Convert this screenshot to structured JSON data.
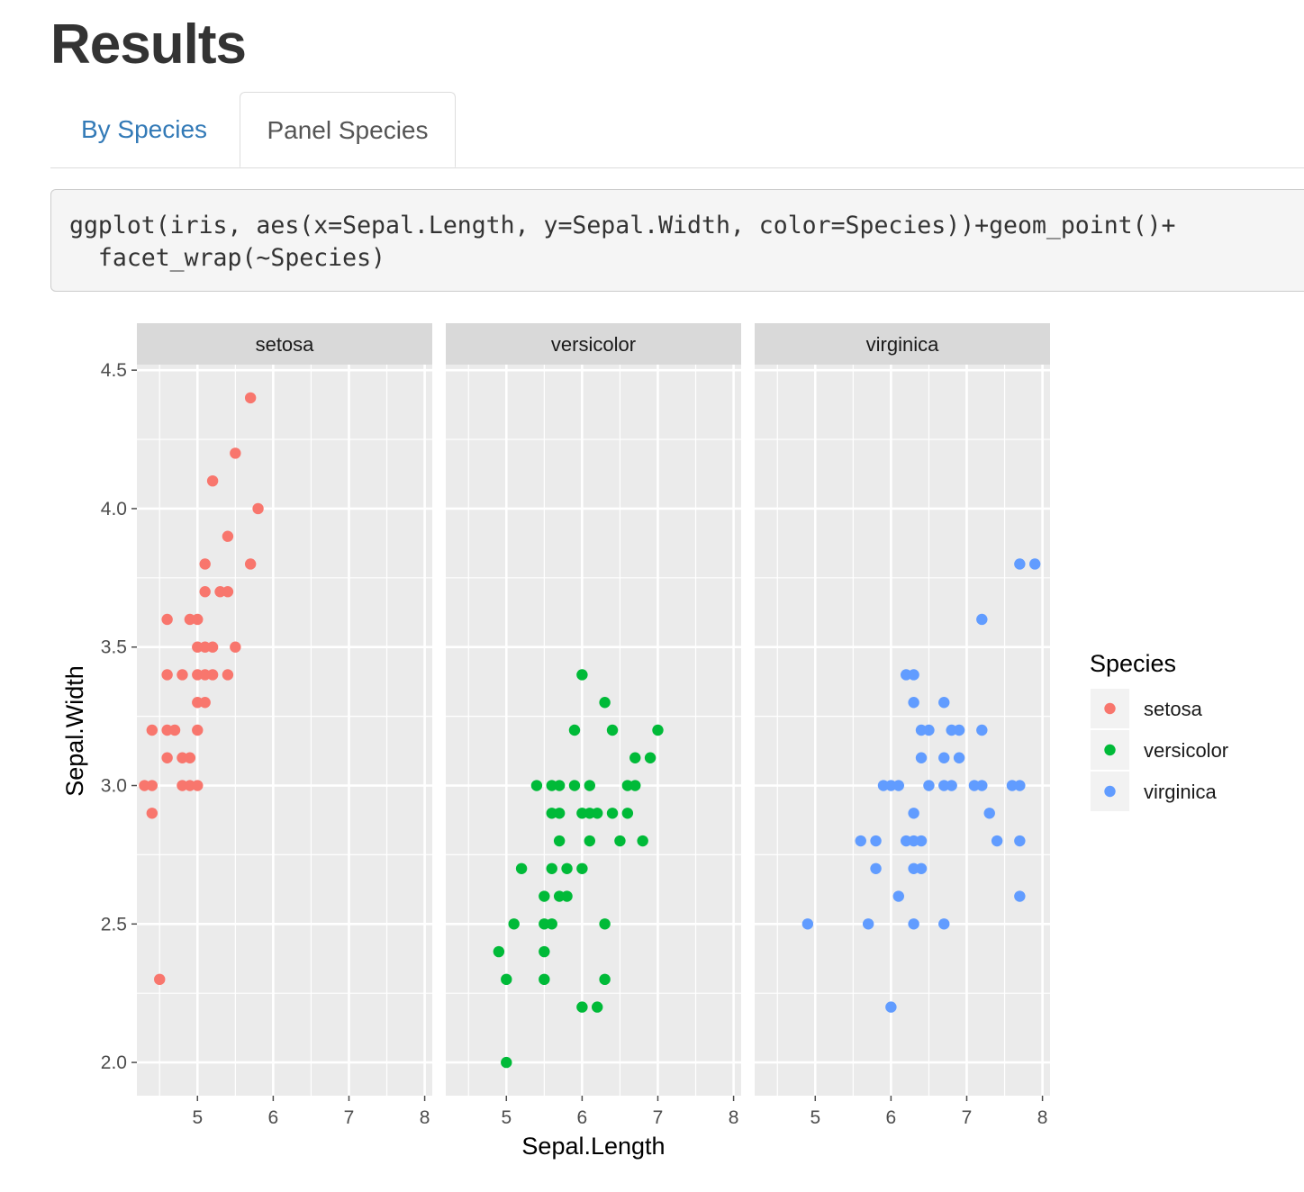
{
  "page": {
    "title": "Results"
  },
  "tabs": [
    {
      "label": "By Species",
      "active": false
    },
    {
      "label": "Panel Species",
      "active": true
    }
  ],
  "code": {
    "line1": "ggplot(iris, aes(x=Sepal.Length, y=Sepal.Width, color=Species))+geom_point()+",
    "line2": "  facet_wrap(~Species)"
  },
  "colors": {
    "setosa": "#F8766D",
    "versicolor": "#00BA38",
    "virginica": "#619CFF",
    "panel_bg": "#EBEBEB",
    "strip_bg": "#D9D9D9",
    "tab_link": "#337ab7"
  },
  "chart_data": {
    "type": "scatter",
    "facet_by": "Species",
    "xlabel": "Sepal.Length",
    "ylabel": "Sepal.Width",
    "xlim": [
      4.2,
      8.1
    ],
    "ylim": [
      1.88,
      4.52
    ],
    "x_ticks": [
      5,
      6,
      7,
      8
    ],
    "y_ticks": [
      "2.0",
      "2.5",
      "3.0",
      "3.5",
      "4.0",
      "4.5"
    ],
    "grid": true,
    "legend": {
      "title": "Species",
      "placement": "right",
      "entries": [
        "setosa",
        "versicolor",
        "virginica"
      ]
    },
    "series": [
      {
        "name": "setosa",
        "points": [
          [
            5.7,
            4.4
          ],
          [
            5.5,
            4.2
          ],
          [
            5.2,
            4.1
          ],
          [
            5.8,
            4.0
          ],
          [
            5.4,
            3.9
          ],
          [
            5.1,
            3.8
          ],
          [
            5.7,
            3.8
          ],
          [
            5.1,
            3.7
          ],
          [
            5.3,
            3.7
          ],
          [
            5.4,
            3.7
          ],
          [
            4.6,
            3.6
          ],
          [
            4.9,
            3.6
          ],
          [
            5.0,
            3.6
          ],
          [
            5.0,
            3.5
          ],
          [
            5.1,
            3.5
          ],
          [
            5.2,
            3.5
          ],
          [
            5.5,
            3.5
          ],
          [
            4.6,
            3.4
          ],
          [
            4.8,
            3.4
          ],
          [
            5.0,
            3.4
          ],
          [
            5.1,
            3.4
          ],
          [
            5.2,
            3.4
          ],
          [
            5.4,
            3.4
          ],
          [
            5.0,
            3.3
          ],
          [
            5.1,
            3.3
          ],
          [
            4.4,
            3.2
          ],
          [
            4.6,
            3.2
          ],
          [
            4.7,
            3.2
          ],
          [
            5.0,
            3.2
          ],
          [
            4.6,
            3.1
          ],
          [
            4.8,
            3.1
          ],
          [
            4.9,
            3.1
          ],
          [
            4.3,
            3.0
          ],
          [
            4.4,
            3.0
          ],
          [
            4.8,
            3.0
          ],
          [
            4.9,
            3.0
          ],
          [
            5.0,
            3.0
          ],
          [
            4.4,
            2.9
          ],
          [
            4.5,
            2.3
          ]
        ]
      },
      {
        "name": "versicolor",
        "points": [
          [
            6.0,
            3.4
          ],
          [
            6.3,
            3.3
          ],
          [
            5.9,
            3.2
          ],
          [
            6.4,
            3.2
          ],
          [
            7.0,
            3.2
          ],
          [
            6.7,
            3.1
          ],
          [
            6.9,
            3.1
          ],
          [
            5.4,
            3.0
          ],
          [
            5.6,
            3.0
          ],
          [
            5.7,
            3.0
          ],
          [
            5.9,
            3.0
          ],
          [
            6.1,
            3.0
          ],
          [
            6.6,
            3.0
          ],
          [
            6.7,
            3.0
          ],
          [
            5.6,
            2.9
          ],
          [
            5.7,
            2.9
          ],
          [
            6.0,
            2.9
          ],
          [
            6.1,
            2.9
          ],
          [
            6.2,
            2.9
          ],
          [
            6.4,
            2.9
          ],
          [
            6.6,
            2.9
          ],
          [
            5.7,
            2.8
          ],
          [
            6.1,
            2.8
          ],
          [
            6.5,
            2.8
          ],
          [
            6.8,
            2.8
          ],
          [
            5.2,
            2.7
          ],
          [
            5.6,
            2.7
          ],
          [
            5.8,
            2.7
          ],
          [
            6.0,
            2.7
          ],
          [
            5.5,
            2.6
          ],
          [
            5.7,
            2.6
          ],
          [
            5.8,
            2.6
          ],
          [
            5.1,
            2.5
          ],
          [
            5.5,
            2.5
          ],
          [
            5.6,
            2.5
          ],
          [
            6.3,
            2.5
          ],
          [
            4.9,
            2.4
          ],
          [
            5.5,
            2.4
          ],
          [
            5.0,
            2.3
          ],
          [
            5.5,
            2.3
          ],
          [
            6.3,
            2.3
          ],
          [
            6.0,
            2.2
          ],
          [
            6.2,
            2.2
          ],
          [
            5.0,
            2.0
          ]
        ]
      },
      {
        "name": "virginica",
        "points": [
          [
            7.7,
            3.8
          ],
          [
            7.9,
            3.8
          ],
          [
            7.2,
            3.6
          ],
          [
            6.2,
            3.4
          ],
          [
            6.3,
            3.4
          ],
          [
            6.3,
            3.3
          ],
          [
            6.7,
            3.3
          ],
          [
            6.4,
            3.2
          ],
          [
            6.5,
            3.2
          ],
          [
            6.8,
            3.2
          ],
          [
            6.9,
            3.2
          ],
          [
            7.2,
            3.2
          ],
          [
            6.4,
            3.1
          ],
          [
            6.7,
            3.1
          ],
          [
            6.9,
            3.1
          ],
          [
            5.9,
            3.0
          ],
          [
            6.0,
            3.0
          ],
          [
            6.1,
            3.0
          ],
          [
            6.5,
            3.0
          ],
          [
            6.7,
            3.0
          ],
          [
            6.8,
            3.0
          ],
          [
            7.1,
            3.0
          ],
          [
            7.2,
            3.0
          ],
          [
            7.6,
            3.0
          ],
          [
            7.7,
            3.0
          ],
          [
            6.3,
            2.9
          ],
          [
            7.3,
            2.9
          ],
          [
            5.6,
            2.8
          ],
          [
            5.8,
            2.8
          ],
          [
            6.2,
            2.8
          ],
          [
            6.3,
            2.8
          ],
          [
            6.4,
            2.8
          ],
          [
            7.4,
            2.8
          ],
          [
            7.7,
            2.8
          ],
          [
            5.8,
            2.7
          ],
          [
            6.3,
            2.7
          ],
          [
            6.4,
            2.7
          ],
          [
            6.1,
            2.6
          ],
          [
            7.7,
            2.6
          ],
          [
            4.9,
            2.5
          ],
          [
            5.7,
            2.5
          ],
          [
            6.3,
            2.5
          ],
          [
            6.7,
            2.5
          ],
          [
            6.0,
            2.2
          ]
        ]
      }
    ]
  }
}
